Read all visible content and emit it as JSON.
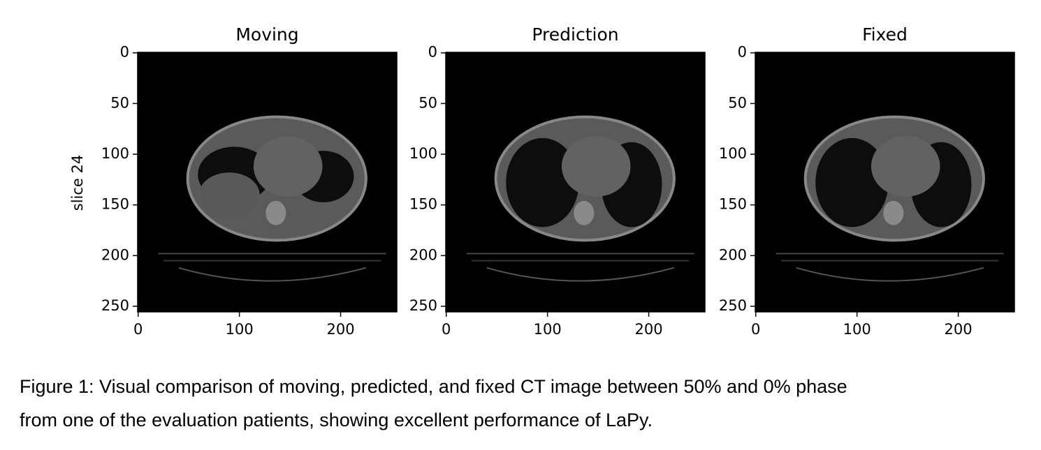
{
  "figure": {
    "ylabel": "slice 24",
    "panels": [
      {
        "title": "Moving",
        "xlim": [
          -0.5,
          255.5
        ],
        "ylim": [
          255.5,
          -0.5
        ],
        "xticks": [
          0,
          100,
          200
        ],
        "yticks": [
          0,
          50,
          100,
          150,
          200,
          250
        ]
      },
      {
        "title": "Prediction",
        "xlim": [
          -0.5,
          255.5
        ],
        "ylim": [
          255.5,
          -0.5
        ],
        "xticks": [
          0,
          100,
          200
        ],
        "yticks": [
          0,
          50,
          100,
          150,
          200,
          250
        ]
      },
      {
        "title": "Fixed",
        "xlim": [
          -0.5,
          255.5
        ],
        "ylim": [
          255.5,
          -0.5
        ],
        "xticks": [
          0,
          100,
          200
        ],
        "yticks": [
          0,
          50,
          100,
          150,
          200,
          250
        ]
      }
    ],
    "caption": [
      "Figure 1: Visual comparison of moving, predicted, and fixed CT image between 50% and 0% phase",
      "from one of the evaluation patients, showing excellent performance of LaPy."
    ]
  }
}
